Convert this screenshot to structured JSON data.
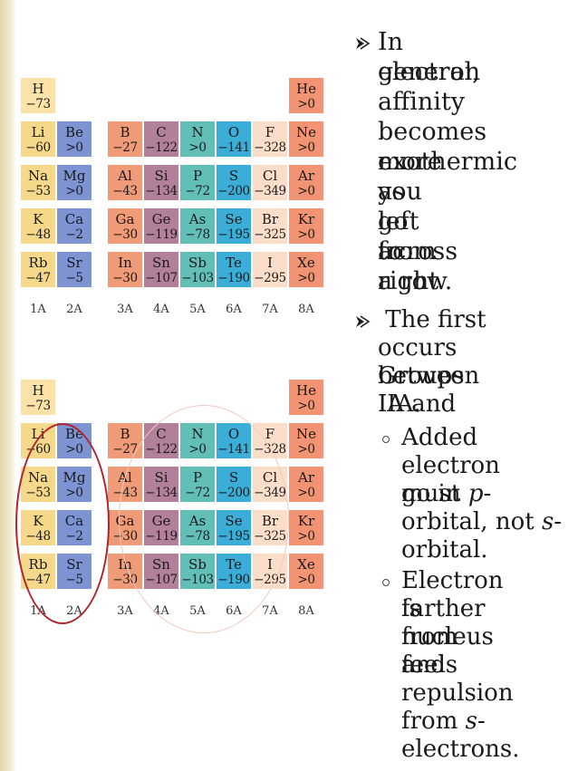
{
  "palette": {
    "H": "#fbe2a8",
    "alkali": "#f6d88a",
    "alkaline": "#7d93d2",
    "boron": "#ef9b78",
    "carbon": "#b2809b",
    "nitrogen": "#62bfb8",
    "oxygen": "#3aaed6",
    "halogen": "#fbdeca",
    "noble": "#f29373"
  },
  "periodic_table": {
    "cells": [
      {
        "symbol": "H",
        "value": "−73",
        "group": "H",
        "row": 0,
        "col": 0
      },
      {
        "symbol": "He",
        "value": ">0",
        "group": "noble",
        "row": 0,
        "col": 7
      },
      {
        "symbol": "Li",
        "value": "−60",
        "group": "alkali",
        "row": 1,
        "col": 0
      },
      {
        "symbol": "Be",
        "value": ">0",
        "group": "alkaline",
        "row": 1,
        "col": 1
      },
      {
        "symbol": "B",
        "value": "−27",
        "group": "boron",
        "row": 1,
        "col": 2
      },
      {
        "symbol": "C",
        "value": "−122",
        "group": "carbon",
        "row": 1,
        "col": 3
      },
      {
        "symbol": "N",
        "value": ">0",
        "group": "nitrogen",
        "row": 1,
        "col": 4
      },
      {
        "symbol": "O",
        "value": "−141",
        "group": "oxygen",
        "row": 1,
        "col": 5
      },
      {
        "symbol": "F",
        "value": "−328",
        "group": "halogen",
        "row": 1,
        "col": 6
      },
      {
        "symbol": "Ne",
        "value": ">0",
        "group": "noble",
        "row": 1,
        "col": 7
      },
      {
        "symbol": "Na",
        "value": "−53",
        "group": "alkali",
        "row": 2,
        "col": 0
      },
      {
        "symbol": "Mg",
        "value": ">0",
        "group": "alkaline",
        "row": 2,
        "col": 1
      },
      {
        "symbol": "Al",
        "value": "−43",
        "group": "boron",
        "row": 2,
        "col": 2
      },
      {
        "symbol": "Si",
        "value": "−134",
        "group": "carbon",
        "row": 2,
        "col": 3
      },
      {
        "symbol": "P",
        "value": "−72",
        "group": "nitrogen",
        "row": 2,
        "col": 4
      },
      {
        "symbol": "S",
        "value": "−200",
        "group": "oxygen",
        "row": 2,
        "col": 5
      },
      {
        "symbol": "Cl",
        "value": "−349",
        "group": "halogen",
        "row": 2,
        "col": 6
      },
      {
        "symbol": "Ar",
        "value": ">0",
        "group": "noble",
        "row": 2,
        "col": 7
      },
      {
        "symbol": "K",
        "value": "−48",
        "group": "alkali",
        "row": 3,
        "col": 0
      },
      {
        "symbol": "Ca",
        "value": "−2",
        "group": "alkaline",
        "row": 3,
        "col": 1
      },
      {
        "symbol": "Ga",
        "value": "−30",
        "group": "boron",
        "row": 3,
        "col": 2
      },
      {
        "symbol": "Ge",
        "value": "−119",
        "group": "carbon",
        "row": 3,
        "col": 3
      },
      {
        "symbol": "As",
        "value": "−78",
        "group": "nitrogen",
        "row": 3,
        "col": 4
      },
      {
        "symbol": "Se",
        "value": "−195",
        "group": "oxygen",
        "row": 3,
        "col": 5
      },
      {
        "symbol": "Br",
        "value": "−325",
        "group": "halogen",
        "row": 3,
        "col": 6
      },
      {
        "symbol": "Kr",
        "value": ">0",
        "group": "noble",
        "row": 3,
        "col": 7
      },
      {
        "symbol": "Rb",
        "value": "−47",
        "group": "alkali",
        "row": 4,
        "col": 0
      },
      {
        "symbol": "Sr",
        "value": "−5",
        "group": "alkaline",
        "row": 4,
        "col": 1
      },
      {
        "symbol": "In",
        "value": "−30",
        "group": "boron",
        "row": 4,
        "col": 2
      },
      {
        "symbol": "Sn",
        "value": "−107",
        "group": "carbon",
        "row": 4,
        "col": 3
      },
      {
        "symbol": "Sb",
        "value": "−103",
        "group": "nitrogen",
        "row": 4,
        "col": 4
      },
      {
        "symbol": "Te",
        "value": "−190",
        "group": "oxygen",
        "row": 4,
        "col": 5
      },
      {
        "symbol": "I",
        "value": "−295",
        "group": "halogen",
        "row": 4,
        "col": 6
      },
      {
        "symbol": "Xe",
        "value": ">0",
        "group": "noble",
        "row": 4,
        "col": 7
      }
    ],
    "group_labels": [
      "1A",
      "2A",
      "3A",
      "4A",
      "5A",
      "6A",
      "7A",
      "8A"
    ]
  },
  "bullet1": {
    "lines": [
      "In general,",
      "electron",
      "affinity",
      "becomes more",
      "exothermic as",
      "you go from",
      "left to right",
      "across a row."
    ]
  },
  "bullet2": {
    "lines": [
      " The first",
      "occurs between",
      "Groups IA and",
      "IIA."
    ]
  },
  "sub1": {
    "l1": "Added",
    "l2": "electron must",
    "l3_pre": "go in ",
    "l3_it": "p",
    "l3_post": "-",
    "l4_pre": "orbital, not ",
    "l4_it": "s",
    "l4_post": "-",
    "l5": "orbital."
  },
  "sub2": {
    "l1": "Electron is",
    "l2": "farther from",
    "l3": "nucleus and",
    "l4": "feels",
    "l5": "repulsion",
    "l6_pre": "from ",
    "l6_it": "s",
    "l6_post": "-",
    "l7": "electrons."
  },
  "icons": {
    "bullet": "arrow-bullet-icon",
    "sub_bullet": "circle-bullet-icon"
  }
}
